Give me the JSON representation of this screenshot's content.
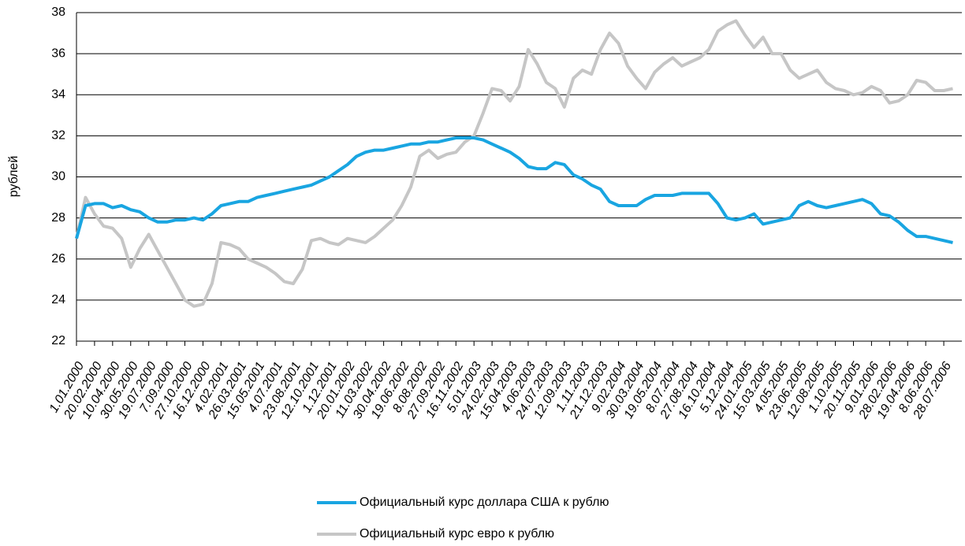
{
  "chart_data": {
    "type": "line",
    "y_label": "рублей",
    "categories": [
      "1.01.2000",
      null,
      "20.02.2000",
      null,
      "10.04.2000",
      null,
      "30.05.2000",
      null,
      "19.07.2000",
      null,
      "7.09.2000",
      null,
      "27.10.2000",
      null,
      "16.12.2000",
      null,
      "4.02.2001",
      null,
      "26.03.2001",
      null,
      "15.05.2001",
      null,
      "4.07.2001",
      null,
      "23.08.2001",
      null,
      "12.10.2001",
      null,
      "1.12.2001",
      null,
      "20.01.2002",
      null,
      "11.03.2002",
      null,
      "30.04.2002",
      null,
      "19.06.2002",
      null,
      "8.08.2002",
      null,
      "27.09.2002",
      null,
      "16.11.2002",
      null,
      "5.01.2003",
      null,
      "24.02.2003",
      null,
      "15.04.2003",
      null,
      "4.06.2003",
      null,
      "24.07.2003",
      null,
      "12.09.2003",
      null,
      "1.11.2003",
      null,
      "21.12.2003",
      null,
      "9.02.2004",
      null,
      "30.03.2004",
      null,
      "19.05.2004",
      null,
      "8.07.2004",
      null,
      "27.08.2004",
      null,
      "16.10.2004",
      null,
      "5.12.2004",
      null,
      "24.01.2005",
      null,
      "15.03.2005",
      null,
      "4.05.2005",
      null,
      "23.06.2005",
      null,
      "12.08.2005",
      null,
      "1.10.2005",
      null,
      "20.11.2005",
      null,
      "9.01.2006",
      null,
      "28.02.2006",
      null,
      "19.04.2006",
      null,
      "8.06.2006",
      null,
      "28.07.2006",
      null
    ],
    "series": [
      {
        "name": "Официальный курс доллара США к рублю",
        "color": "#19a5e1",
        "values": [
          27.0,
          28.6,
          28.7,
          28.7,
          28.5,
          28.6,
          28.4,
          28.3,
          28.0,
          27.8,
          27.8,
          27.9,
          27.9,
          28.0,
          27.9,
          28.2,
          28.6,
          28.7,
          28.8,
          28.8,
          29.0,
          29.1,
          29.2,
          29.3,
          29.4,
          29.5,
          29.6,
          29.8,
          30.0,
          30.3,
          30.6,
          31.0,
          31.2,
          31.3,
          31.3,
          31.4,
          31.5,
          31.6,
          31.6,
          31.7,
          31.7,
          31.8,
          31.9,
          31.9,
          31.9,
          31.8,
          31.6,
          31.4,
          31.2,
          30.9,
          30.5,
          30.4,
          30.4,
          30.7,
          30.6,
          30.1,
          29.9,
          29.6,
          29.4,
          28.8,
          28.6,
          28.6,
          28.6,
          28.9,
          29.1,
          29.1,
          29.1,
          29.2,
          29.2,
          29.2,
          29.2,
          28.7,
          28.0,
          27.9,
          28.0,
          28.2,
          27.7,
          27.8,
          27.9,
          28.0,
          28.6,
          28.8,
          28.6,
          28.5,
          28.6,
          28.7,
          28.8,
          28.9,
          28.7,
          28.2,
          28.1,
          27.8,
          27.4,
          27.1,
          27.1,
          27.0,
          26.9,
          26.8
        ]
      },
      {
        "name": "Официальный курс евро к рублю",
        "color": "#c6c6c6",
        "values": [
          27.0,
          29.0,
          28.2,
          27.6,
          27.5,
          27.0,
          25.6,
          26.5,
          27.2,
          26.4,
          25.6,
          24.8,
          24.0,
          23.7,
          23.8,
          24.8,
          26.8,
          26.7,
          26.5,
          26.0,
          25.8,
          25.6,
          25.3,
          24.9,
          24.8,
          25.5,
          26.9,
          27.0,
          26.8,
          26.7,
          27.0,
          26.9,
          26.8,
          27.1,
          27.5,
          27.9,
          28.6,
          29.5,
          31.0,
          31.3,
          30.9,
          31.1,
          31.2,
          31.7,
          32.0,
          33.1,
          34.3,
          34.2,
          33.7,
          34.4,
          36.2,
          35.5,
          34.6,
          34.3,
          33.4,
          34.8,
          35.2,
          35.0,
          36.2,
          37.0,
          36.5,
          35.4,
          34.8,
          34.3,
          35.1,
          35.5,
          35.8,
          35.4,
          35.6,
          35.8,
          36.2,
          37.1,
          37.4,
          37.6,
          36.9,
          36.3,
          36.8,
          36.0,
          36.0,
          35.2,
          34.8,
          35.0,
          35.2,
          34.6,
          34.3,
          34.2,
          34.0,
          34.1,
          34.4,
          34.2,
          33.6,
          33.7,
          34.0,
          34.7,
          34.6,
          34.2,
          34.2,
          34.3
        ]
      }
    ],
    "ylim": [
      22,
      38
    ],
    "yticks": [
      22,
      24,
      26,
      28,
      30,
      32,
      34,
      36,
      38
    ],
    "grid": true,
    "legend": "bottom"
  }
}
